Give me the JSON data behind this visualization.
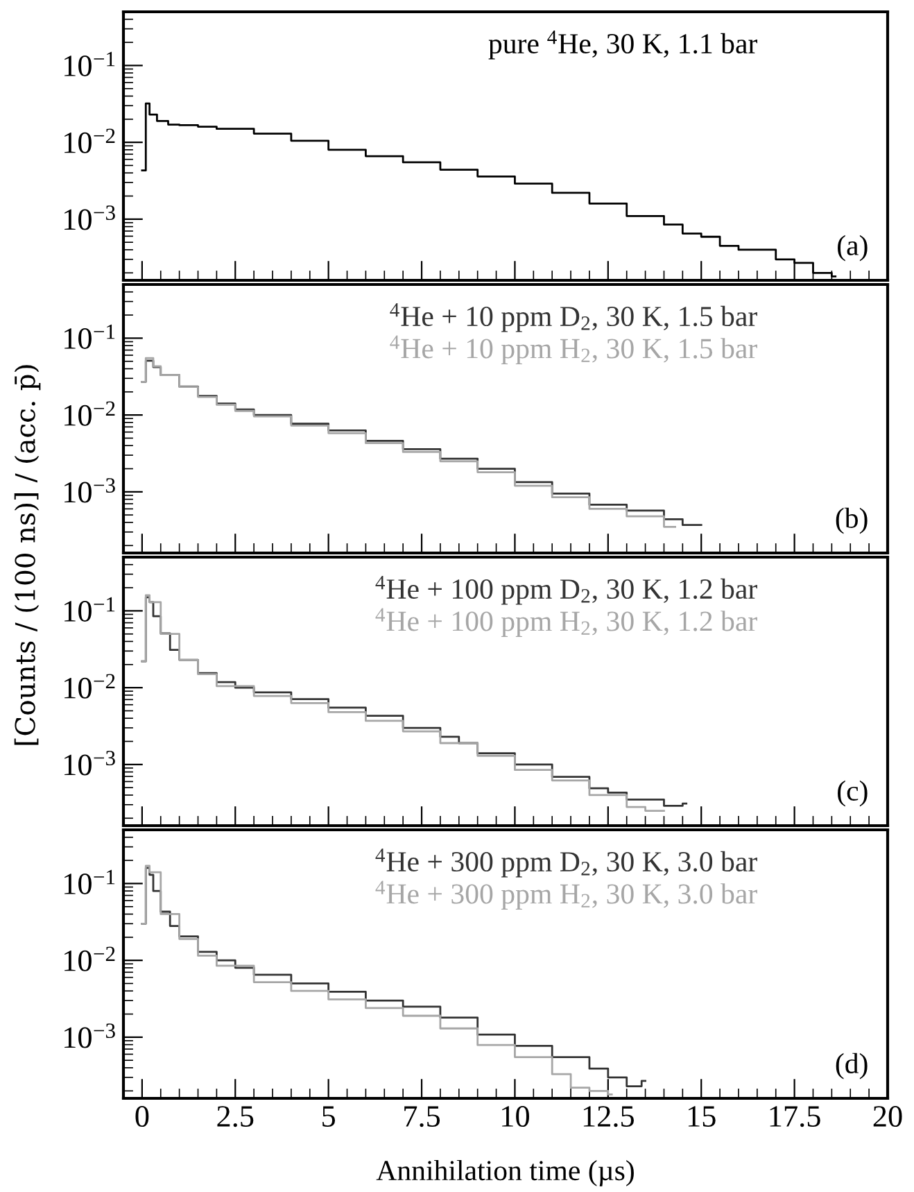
{
  "chart_data": [
    {
      "type": "step",
      "xlim": [
        -0.5,
        20
      ],
      "ylim": [
        0.00016,
        0.5
      ],
      "log": "y",
      "tick_labels": "y",
      "legend": false,
      "grid": false,
      "yticks": [
        {
          "value": 0.001,
          "label": "10$^{−3}$"
        },
        {
          "value": 0.01,
          "label": "10$^{−2}$"
        },
        {
          "value": 0.1,
          "label": "10$^{−1}$"
        }
      ],
      "annotations": [
        "(a)"
      ],
      "series": [
        {
          "name": "pure $^{4}$He, 30 K, 1.1 bar",
          "color": "#000000",
          "x": [
            0,
            0.1,
            0.2,
            0.4,
            0.7,
            1,
            1.5,
            2,
            3,
            4,
            5,
            6,
            7,
            8,
            9,
            10,
            11,
            12,
            13,
            14,
            14.5,
            15,
            15.5,
            16,
            17,
            17.5,
            18,
            18.5,
            18.6
          ],
          "values": [
            0.0043,
            0.032,
            0.023,
            0.019,
            0.017,
            0.0167,
            0.016,
            0.015,
            0.013,
            0.0105,
            0.008,
            0.0066,
            0.0055,
            0.0044,
            0.0036,
            0.0029,
            0.0022,
            0.0016,
            0.0011,
            0.00085,
            0.00065,
            0.00059,
            0.00045,
            0.0004,
            0.0003,
            0.00027,
            0.0002,
            0.00018,
            0.00018
          ]
        }
      ]
    },
    {
      "type": "step",
      "xlim": [
        -0.5,
        20
      ],
      "ylim": [
        0.00016,
        0.5
      ],
      "log": "y",
      "tick_labels": "y",
      "legend": false,
      "grid": false,
      "yticks": [
        {
          "value": 0.001,
          "label": "10$^{−3}$"
        },
        {
          "value": 0.01,
          "label": "10$^{−2}$"
        },
        {
          "value": 0.1,
          "label": "10$^{−1}$"
        }
      ],
      "ylabel": "[Counts / (100 ns)] / (acc. p̄)",
      "annotations": [
        "(b)"
      ],
      "series": [
        {
          "name": "$^{4}$He + 10 ppm D$_{2}$, 30 K, 1.5 bar",
          "color": "#333333",
          "x": [
            0,
            0.1,
            0.3,
            0.5,
            1,
            1.5,
            2,
            2.5,
            3,
            4,
            5,
            6,
            7,
            8,
            9,
            10,
            11,
            12,
            13,
            14,
            14.5,
            15
          ],
          "values": [
            0.027,
            0.051,
            0.042,
            0.033,
            0.0235,
            0.0177,
            0.0141,
            0.0118,
            0.01,
            0.0077,
            0.0063,
            0.0046,
            0.0036,
            0.0027,
            0.002,
            0.00134,
            0.00095,
            0.00068,
            0.00057,
            0.00044,
            0.00037,
            0.00037
          ]
        },
        {
          "name": "$^{4}$He + 10 ppm H$_{2}$, 30 K, 1.5 bar",
          "color": "#a6a6a6",
          "x": [
            0,
            0.1,
            0.3,
            0.5,
            1,
            1.5,
            2,
            2.5,
            3,
            4,
            5,
            6,
            7,
            8,
            9,
            10,
            11,
            12,
            13,
            14,
            14.3
          ],
          "values": [
            0.027,
            0.055,
            0.043,
            0.033,
            0.0232,
            0.0172,
            0.0136,
            0.0113,
            0.0096,
            0.0073,
            0.0058,
            0.0043,
            0.0033,
            0.0025,
            0.0018,
            0.0012,
            0.00085,
            0.0006,
            0.00048,
            0.00035,
            0.00035
          ]
        }
      ]
    },
    {
      "type": "step",
      "xlim": [
        -0.5,
        20
      ],
      "ylim": [
        0.00016,
        0.5
      ],
      "log": "y",
      "tick_labels": "y",
      "legend": false,
      "grid": false,
      "yticks": [
        {
          "value": 0.001,
          "label": "10$^{−3}$"
        },
        {
          "value": 0.01,
          "label": "10$^{−2}$"
        },
        {
          "value": 0.1,
          "label": "10$^{−1}$"
        }
      ],
      "annotations": [
        "(c)"
      ],
      "series": [
        {
          "name": "$^{4}$He + 100 ppm D$_{2}$, 30 K, 1.2 bar",
          "color": "#333333",
          "x": [
            0,
            0.1,
            0.2,
            0.3,
            0.5,
            0.75,
            1,
            1.5,
            2,
            2.5,
            3,
            4,
            5,
            6,
            7,
            8,
            8.5,
            9,
            10,
            11,
            12,
            12.5,
            13,
            14,
            14.5,
            14.6
          ],
          "values": [
            0.022,
            0.15,
            0.13,
            0.085,
            0.051,
            0.031,
            0.023,
            0.0155,
            0.0118,
            0.01,
            0.0087,
            0.0071,
            0.0055,
            0.0043,
            0.003,
            0.0023,
            0.0019,
            0.0014,
            0.001,
            0.00069,
            0.00049,
            0.00043,
            0.00035,
            0.00029,
            0.00031,
            0.00031
          ]
        },
        {
          "name": "$^{4}$He + 100 ppm H$_{2}$, 30 K, 1.2 bar",
          "color": "#a6a6a6",
          "x": [
            0,
            0.1,
            0.2,
            0.5,
            1,
            1.5,
            2,
            3,
            4,
            5,
            6,
            7,
            8,
            9,
            10,
            11,
            12,
            13,
            13.5,
            14
          ],
          "values": [
            0.022,
            0.16,
            0.13,
            0.05,
            0.023,
            0.015,
            0.0105,
            0.0078,
            0.0063,
            0.0048,
            0.0037,
            0.0027,
            0.0019,
            0.0013,
            0.00085,
            0.00062,
            0.0004,
            0.00028,
            0.00025,
            0.00025
          ]
        }
      ]
    },
    {
      "type": "step",
      "xlim": [
        -0.5,
        20
      ],
      "ylim": [
        0.00016,
        0.5
      ],
      "log": "y",
      "legend": false,
      "grid": false,
      "xticks": [
        0,
        2.5,
        5,
        7.5,
        10,
        12.5,
        15,
        17.5,
        20
      ],
      "yticks": [
        {
          "value": 0.001,
          "label": "10$^{−3}$"
        },
        {
          "value": 0.01,
          "label": "10$^{−2}$"
        },
        {
          "value": 0.1,
          "label": "10$^{−1}$"
        }
      ],
      "xlabel": "Annihilation time (µs)",
      "annotations": [
        "(d)"
      ],
      "series": [
        {
          "name": "$^{4}$He + 300 ppm D$_{2}$, 30 K, 3.0 bar",
          "color": "#333333",
          "x": [
            0,
            0.1,
            0.2,
            0.3,
            0.5,
            0.75,
            1,
            1.5,
            2,
            2.5,
            3,
            4,
            5,
            6,
            7,
            8,
            9,
            10,
            11,
            12,
            12.5,
            13,
            13.4,
            13.5
          ],
          "values": [
            0.03,
            0.16,
            0.13,
            0.08,
            0.043,
            0.028,
            0.0205,
            0.0129,
            0.01,
            0.008,
            0.0065,
            0.005,
            0.0039,
            0.003,
            0.0025,
            0.0018,
            0.00108,
            0.00077,
            0.00055,
            0.00039,
            0.0003,
            0.00023,
            0.00027,
            0.00027
          ]
        },
        {
          "name": "$^{4}$He + 300 ppm H$_{2}$, 30 K, 3.0 bar",
          "color": "#a6a6a6",
          "x": [
            0,
            0.1,
            0.2,
            0.5,
            1,
            1.5,
            2,
            3,
            4,
            5,
            6,
            7,
            8,
            9,
            10,
            11,
            11.5,
            12,
            12.5,
            12.6
          ],
          "values": [
            0.03,
            0.17,
            0.14,
            0.04,
            0.019,
            0.0115,
            0.0085,
            0.0052,
            0.004,
            0.0031,
            0.0024,
            0.0019,
            0.0013,
            0.00079,
            0.00055,
            0.00033,
            0.00022,
            0.0002,
            0.00018,
            0.00018
          ]
        }
      ]
    }
  ]
}
